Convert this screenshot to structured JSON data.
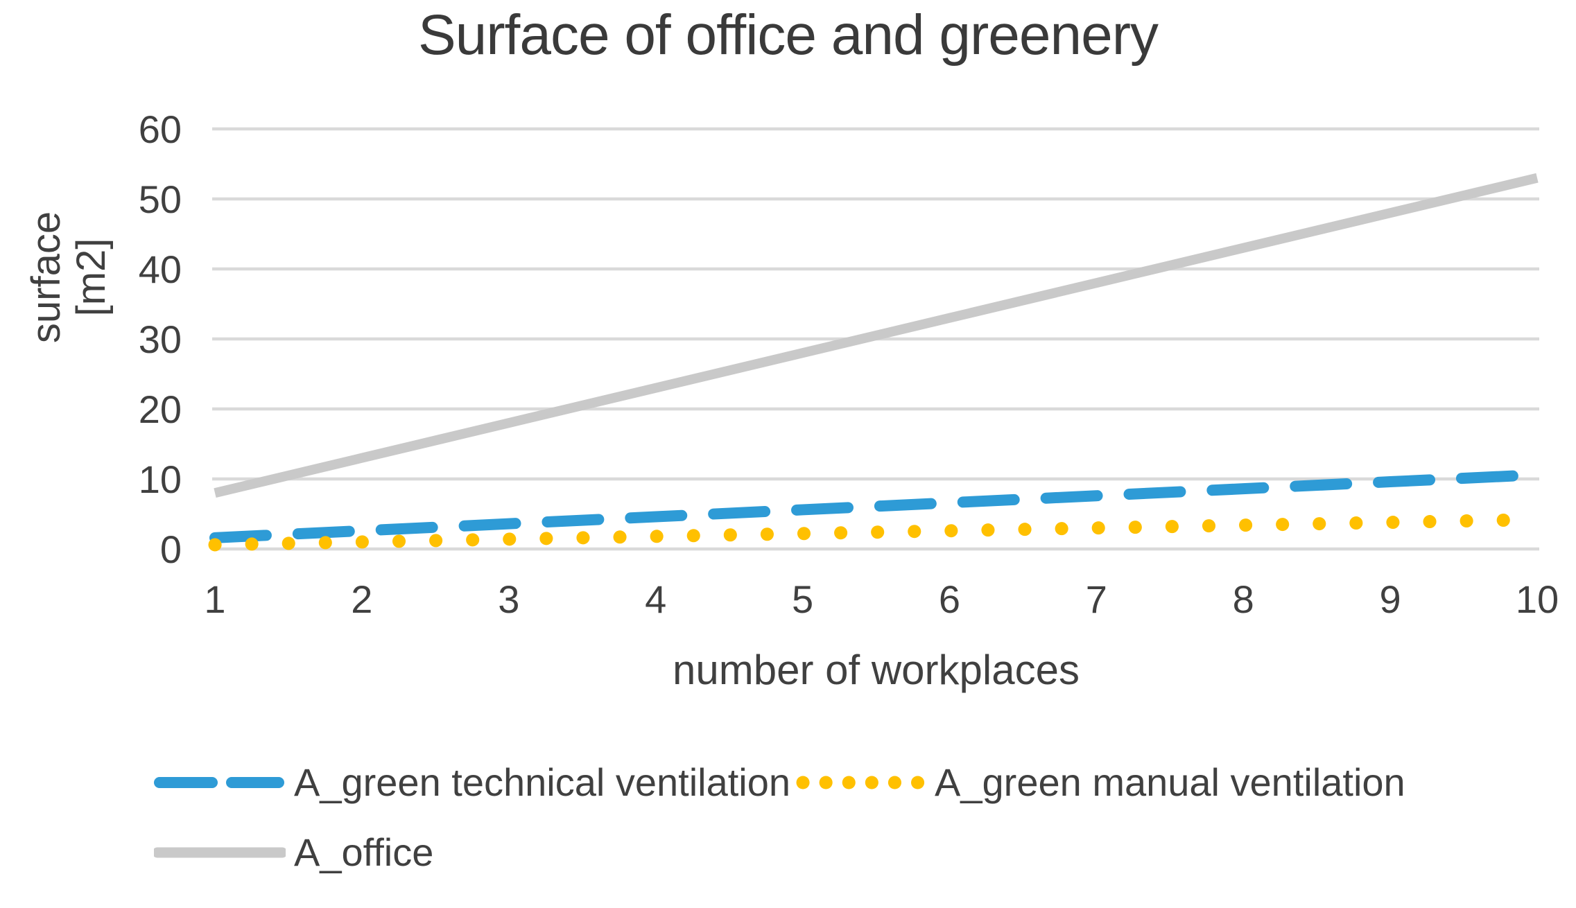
{
  "chart_data": {
    "type": "line",
    "title": "Surface of office and greenery",
    "xlabel": "number of workplaces",
    "ylabel": "surface\n[m2]",
    "x": [
      1,
      2,
      3,
      4,
      5,
      6,
      7,
      8,
      9,
      10
    ],
    "xtick_labels": [
      "1",
      "2",
      "3",
      "4",
      "5",
      "6",
      "7",
      "8",
      "9",
      "10"
    ],
    "ytick_labels": [
      "0",
      "10",
      "20",
      "30",
      "40",
      "50",
      "60"
    ],
    "yticks": [
      0,
      10,
      20,
      30,
      40,
      50,
      60
    ],
    "ylim": [
      0,
      60
    ],
    "grid": "horizontal-only",
    "legend_position": "bottom",
    "series": [
      {
        "name": "A_green technical ventilation",
        "style": "dashed",
        "color": "#2E9BD6",
        "values": [
          1.6,
          2.6,
          3.6,
          4.6,
          5.6,
          6.6,
          7.6,
          8.6,
          9.6,
          10.6
        ]
      },
      {
        "name": "A_green manual ventilation",
        "style": "dotted",
        "color": "#FFC000",
        "values": [
          0.6,
          1.0,
          1.4,
          1.8,
          2.2,
          2.6,
          3.0,
          3.4,
          3.8,
          4.2
        ]
      },
      {
        "name": "A_office",
        "style": "solid",
        "color": "#C9C9C9",
        "values": [
          8,
          13,
          18,
          23,
          28,
          33,
          38,
          43,
          48,
          53
        ]
      }
    ],
    "colors": {
      "gridline": "#D9D9D9",
      "text": "#404040",
      "title_text": "#3A3A3A",
      "background": "#FFFFFF"
    }
  }
}
